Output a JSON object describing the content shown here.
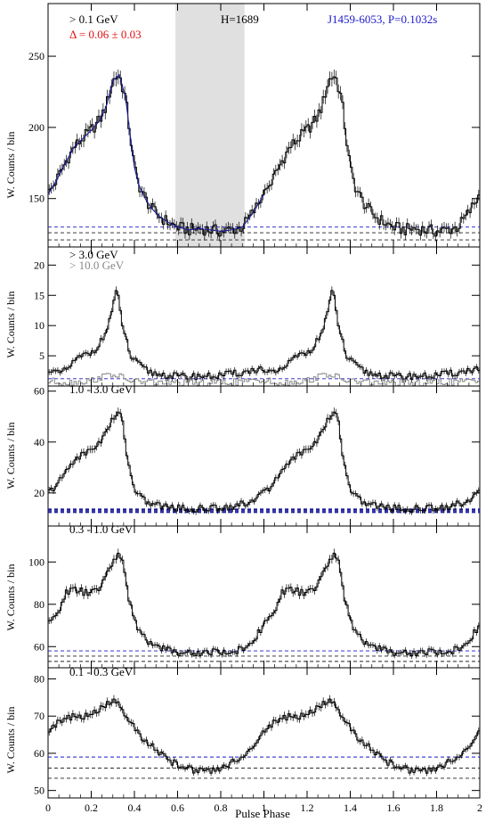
{
  "figure": {
    "source_label": "J1459-6053, P=0.1032s",
    "x_axis_label": "Pulse Phase",
    "y_axis_label": "W. Counts / bin",
    "x_ticks": [
      "0",
      "0.2",
      "0.4",
      "0.6",
      "0.8",
      "1",
      "1.2",
      "1.4",
      "1.6",
      "1.8",
      "2"
    ],
    "colors": {
      "source_label": "#1a1acc",
      "delta": "#e01010",
      "fit": "#1a1a99",
      "offpulse_band": "#e0e0e0",
      "band_ref": "#888888"
    }
  },
  "chart_data": [
    {
      "type": "line",
      "panel": "0.1 GeV and above",
      "label": "> 0.1 GeV",
      "delta_label": "Δ = 0.06 ± 0.03",
      "htest_label": "H=1689",
      "ylim": [
        116,
        287
      ],
      "yticks": [
        150,
        200,
        250
      ],
      "offpulse_phase": [
        0.59,
        0.91
      ],
      "background_levels": [
        130,
        126,
        121
      ],
      "series": [
        {
          "name": "",
          "x": [
            0.0,
            0.04,
            0.08,
            0.12,
            0.16,
            0.2,
            0.24,
            0.27,
            0.3,
            0.33,
            0.36,
            0.38,
            0.4,
            0.42,
            0.45,
            0.48,
            0.52,
            0.56,
            0.6,
            0.65,
            0.7,
            0.75,
            0.8,
            0.85,
            0.9,
            0.95,
            1.0
          ],
          "values": [
            153,
            163,
            175,
            186,
            192,
            198,
            205,
            215,
            233,
            237,
            220,
            195,
            172,
            160,
            150,
            143,
            137,
            133,
            130,
            128,
            129,
            128,
            127,
            128,
            130,
            140,
            153
          ]
        }
      ]
    },
    {
      "type": "line",
      "panel": "3.0 GeV and above",
      "label": "> 3.0 GeV",
      "label_secondary": "> 10.0 GeV",
      "ylim": [
        0,
        23
      ],
      "yticks": [
        5,
        10,
        15,
        20
      ],
      "background_levels": [
        1.2
      ],
      "series": [
        {
          "name": "",
          "x": [
            0.0,
            0.04,
            0.08,
            0.12,
            0.16,
            0.2,
            0.24,
            0.27,
            0.3,
            0.32,
            0.34,
            0.36,
            0.38,
            0.42,
            0.46,
            0.5,
            0.55,
            0.6,
            0.65,
            0.7,
            0.75,
            0.8,
            0.85,
            0.9,
            0.95,
            1.0
          ],
          "values": [
            3,
            2,
            2.5,
            4,
            5,
            5.5,
            7,
            9,
            13,
            16,
            11,
            8,
            5,
            3.5,
            2.5,
            2,
            1.8,
            1.6,
            1.5,
            1.7,
            1.6,
            1.8,
            2,
            2.2,
            2.6,
            3
          ]
        },
        {
          "name": "",
          "x": [
            0.0,
            0.1,
            0.2,
            0.25,
            0.3,
            0.33,
            0.36,
            0.4,
            0.5,
            0.6,
            0.7,
            0.8,
            0.9,
            1.0
          ],
          "values": [
            0.8,
            0.6,
            0.9,
            1.5,
            2.0,
            1.6,
            1.1,
            0.8,
            0.6,
            0.5,
            0.5,
            0.6,
            0.7,
            0.8
          ]
        }
      ]
    },
    {
      "type": "line",
      "panel": "1.0 - 3.0 GeV",
      "label": "1.0 - 3.0 GeV",
      "ylim": [
        7,
        62
      ],
      "yticks": [
        20,
        40,
        60
      ],
      "background_levels": [
        13.6,
        13.0,
        12.4
      ],
      "series": [
        {
          "name": "",
          "x": [
            0.0,
            0.04,
            0.08,
            0.12,
            0.16,
            0.2,
            0.24,
            0.27,
            0.3,
            0.33,
            0.35,
            0.37,
            0.4,
            0.43,
            0.47,
            0.52,
            0.57,
            0.62,
            0.67,
            0.72,
            0.77,
            0.82,
            0.87,
            0.92,
            0.96,
            1.0
          ],
          "values": [
            20,
            23,
            28,
            33,
            35,
            37,
            40,
            44,
            49,
            52,
            46,
            32,
            22,
            18,
            16,
            15,
            14.5,
            14,
            13.5,
            14,
            14,
            14.5,
            15,
            16,
            18,
            20
          ]
        }
      ]
    },
    {
      "type": "line",
      "panel": "0.3 - 1.0 GeV",
      "label": "0.3 - 1.0 GeV",
      "ylim": [
        50,
        117
      ],
      "yticks": [
        60,
        80,
        100
      ],
      "background_levels": [
        58,
        55.5,
        53
      ],
      "series": [
        {
          "name": "",
          "x": [
            0.0,
            0.04,
            0.08,
            0.12,
            0.16,
            0.2,
            0.24,
            0.27,
            0.3,
            0.33,
            0.35,
            0.37,
            0.4,
            0.43,
            0.47,
            0.52,
            0.57,
            0.62,
            0.67,
            0.72,
            0.77,
            0.82,
            0.87,
            0.92,
            0.96,
            1.0
          ],
          "values": [
            70,
            75,
            85,
            87,
            86,
            85,
            88,
            93,
            100,
            105,
            98,
            85,
            72,
            66,
            62,
            60,
            58,
            57,
            57,
            57,
            58,
            57,
            58,
            60,
            64,
            70
          ]
        }
      ]
    },
    {
      "type": "line",
      "panel": "0.1 - 0.3 GeV",
      "label": "0.1 - 0.3 GeV",
      "ylim": [
        48,
        83
      ],
      "yticks": [
        50,
        60,
        70,
        80
      ],
      "background_levels": [
        59,
        56,
        53.3
      ],
      "series": [
        {
          "name": "",
          "x": [
            0.0,
            0.04,
            0.08,
            0.12,
            0.16,
            0.2,
            0.24,
            0.27,
            0.3,
            0.33,
            0.36,
            0.4,
            0.44,
            0.48,
            0.52,
            0.56,
            0.6,
            0.64,
            0.68,
            0.72,
            0.76,
            0.8,
            0.84,
            0.88,
            0.92,
            0.96,
            1.0
          ],
          "values": [
            66,
            68,
            69,
            70,
            70,
            70,
            72,
            73,
            74,
            73,
            70,
            67,
            64,
            62,
            60,
            58,
            57,
            56,
            55.5,
            55,
            55.5,
            56,
            57,
            58.5,
            60,
            63,
            66
          ]
        }
      ]
    }
  ]
}
